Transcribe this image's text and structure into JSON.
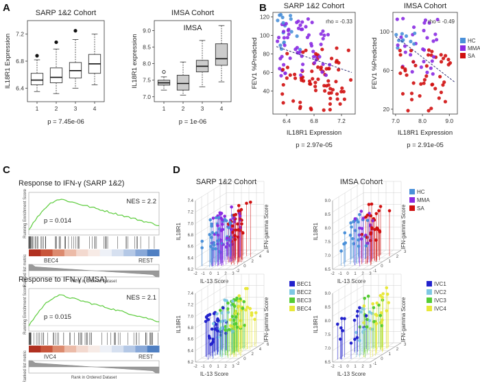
{
  "panels": {
    "A": {
      "label": "A"
    },
    "B": {
      "label": "B"
    },
    "C": {
      "label": "C"
    },
    "D": {
      "label": "D"
    }
  },
  "chart_data": [
    {
      "id": "A1",
      "type": "box",
      "title": "SARP 1&2 Cohort",
      "xlabel": "",
      "ylabel": "IL18R1 Expression",
      "categories": [
        "1",
        "2",
        "3",
        "4"
      ],
      "ylim": [
        6.2,
        7.4
      ],
      "yticks": [
        "6.4",
        "6.8",
        "7.2"
      ],
      "boxes": [
        {
          "min": 6.35,
          "q1": 6.45,
          "median": 6.52,
          "q3": 6.62,
          "max": 6.82,
          "outliers": [
            6.88
          ]
        },
        {
          "min": 6.32,
          "q1": 6.48,
          "median": 6.56,
          "q3": 6.7,
          "max": 6.98,
          "outliers": [
            7.08
          ]
        },
        {
          "min": 6.4,
          "q1": 6.55,
          "median": 6.66,
          "q3": 6.78,
          "max": 7.12,
          "outliers": [
            7.25
          ]
        },
        {
          "min": 6.45,
          "q1": 6.62,
          "median": 6.76,
          "q3": 6.9,
          "max": 7.2,
          "outliers": []
        }
      ],
      "pvalue": "p = 7.45e-06"
    },
    {
      "id": "A2",
      "type": "box",
      "title": "IMSA Cohort",
      "inner_title": "IMSA",
      "xlabel": "",
      "ylabel": "IL18R1 expression",
      "categories": [
        "1",
        "2",
        "3",
        "4"
      ],
      "ylim": [
        6.85,
        9.3
      ],
      "yticks": [
        "7.0",
        "7.5",
        "8.0",
        "8.5",
        "9.0"
      ],
      "boxes": [
        {
          "min": 7.2,
          "q1": 7.35,
          "median": 7.42,
          "q3": 7.5,
          "max": 7.6,
          "outliers": [
            7.75
          ]
        },
        {
          "min": 7.05,
          "q1": 7.2,
          "median": 7.4,
          "q3": 7.65,
          "max": 8.05,
          "outliers": []
        },
        {
          "min": 7.3,
          "q1": 7.75,
          "median": 7.92,
          "q3": 8.1,
          "max": 8.7,
          "outliers": []
        },
        {
          "min": 7.45,
          "q1": 7.95,
          "median": 8.15,
          "q3": 8.6,
          "max": 9.15,
          "outliers": []
        }
      ],
      "pvalue": "p = 1e-06"
    },
    {
      "id": "B1",
      "type": "scatter",
      "title": "SARP 1&2 Cohort",
      "xlabel": "IL18R1 Expression",
      "ylabel": "FEV1 %Predicted",
      "xlim": [
        6.2,
        7.4
      ],
      "ylim": [
        15,
        125
      ],
      "xticks": [
        "6.4",
        "6.8",
        "7.2"
      ],
      "yticks": [
        "40",
        "60",
        "80",
        "100",
        "120"
      ],
      "annotation": "rho = -0.33",
      "pvalue": "p = 2.97e-05",
      "trend": {
        "x": [
          6.25,
          7.35
        ],
        "y": [
          88,
          60
        ]
      }
    },
    {
      "id": "B2",
      "type": "scatter",
      "title": "IMSA Cohort",
      "xlabel": "IL18R1 Expression",
      "ylabel": "FEV1 %Predicted",
      "xlim": [
        6.9,
        9.3
      ],
      "ylim": [
        15,
        120
      ],
      "xticks": [
        "7.0",
        "8.0",
        "9.0"
      ],
      "yticks": [
        "20",
        "60",
        "100"
      ],
      "annotation": "rho = -0.49",
      "pvalue": "p = 2.91e-05",
      "trend": {
        "x": [
          7.0,
          9.2
        ],
        "y": [
          95,
          48
        ]
      },
      "legend": [
        {
          "name": "HC",
          "color": "#4a90d9"
        },
        {
          "name": "MMA",
          "color": "#8a2be2"
        },
        {
          "name": "SA",
          "color": "#d01010"
        }
      ]
    },
    {
      "id": "C1",
      "type": "gsea",
      "title": "Response to IFN-γ (SARP 1&2)",
      "nes": "NES = 2.2",
      "pvalue": "p = 0.014",
      "left_label": "BEC4",
      "right_label": "REST",
      "ylabel": "Running Enrichment Score",
      "metric_label": "Ranked list metric",
      "xlabel": "Rank in Ordered Dataset"
    },
    {
      "id": "C2",
      "type": "gsea",
      "title": "Response to IFN-γ (IMSA)",
      "nes": "NES = 2.1",
      "pvalue": "p = 0.015",
      "left_label": "IVC4",
      "right_label": "REST",
      "ylabel": "Running Enrichment Score",
      "metric_label": "Ranked list metric",
      "xlabel": "Rank in Ordered Dataset"
    },
    {
      "id": "D",
      "type": "scatter3d",
      "col_titles": [
        "SARP 1&2 Cohort",
        "IMSA Cohort"
      ],
      "xlabel": "IL-13 Score",
      "ylabel": "IFN-gamma Score",
      "zlabel": "IL18R1",
      "plots": [
        {
          "xticks": [
            "-2",
            "-1",
            "0",
            "1",
            "2",
            "3"
          ],
          "yticks": [
            "-2",
            "0",
            "2",
            "4",
            "6"
          ],
          "zticks": [
            "6.2",
            "6.4",
            "6.6",
            "6.8",
            "7.0",
            "7.2",
            "7.4"
          ],
          "groups": "cohort"
        },
        {
          "xticks": [
            "-2",
            "-1",
            "0",
            "1",
            "2",
            "3"
          ],
          "yticks": [
            "-1",
            "0",
            "1",
            "2",
            "3"
          ],
          "zticks": [
            "6.5",
            "7.0",
            "7.5",
            "8.0",
            "8.5",
            "9.0"
          ],
          "groups": "cohort"
        },
        {
          "xticks": [
            "-2",
            "-1",
            "0",
            "1",
            "2",
            "3"
          ],
          "yticks": [
            "-2",
            "0",
            "2",
            "4",
            "6"
          ],
          "zticks": [
            "6.2",
            "6.4",
            "6.6",
            "6.8",
            "7.0",
            "7.2",
            "7.4"
          ],
          "groups": "bec"
        },
        {
          "xticks": [
            "-2",
            "-1",
            "0",
            "1",
            "2",
            "3"
          ],
          "yticks": [
            "-1",
            "0",
            "1",
            "2",
            "3"
          ],
          "zticks": [
            "6.5",
            "7.0",
            "7.5",
            "8.0",
            "8.5",
            "9.0"
          ],
          "groups": "ivc"
        }
      ],
      "legends": {
        "cohort": [
          {
            "name": "HC",
            "color": "#4a90d9"
          },
          {
            "name": "MMA",
            "color": "#8a2be2"
          },
          {
            "name": "SA",
            "color": "#d01010"
          }
        ],
        "bec": [
          {
            "name": "BEC1",
            "color": "#2222cc"
          },
          {
            "name": "BEC2",
            "color": "#7ec8e3"
          },
          {
            "name": "BEC3",
            "color": "#55cc33"
          },
          {
            "name": "BEC4",
            "color": "#e8e83a"
          }
        ],
        "ivc": [
          {
            "name": "IVC1",
            "color": "#2222cc"
          },
          {
            "name": "IVC2",
            "color": "#7ec8e3"
          },
          {
            "name": "IVC3",
            "color": "#55cc33"
          },
          {
            "name": "IVC4",
            "color": "#e8e83a"
          }
        ]
      }
    }
  ]
}
